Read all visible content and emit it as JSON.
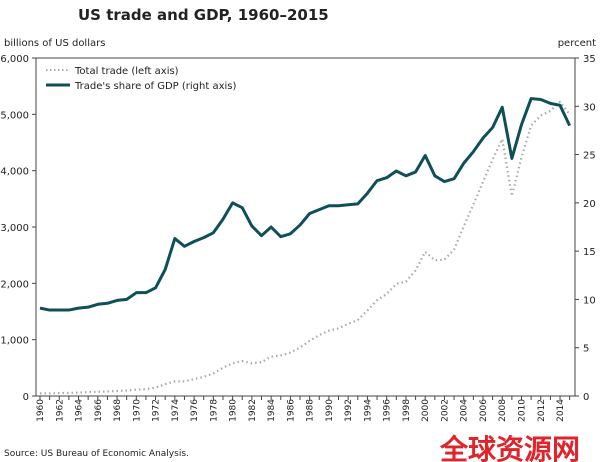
{
  "chart_data": {
    "type": "line",
    "title": "US trade and GDP, 1960–2015",
    "ylabel_left": "billions of US dollars",
    "ylabel_right": "percent",
    "ylim_left": [
      0,
      6000
    ],
    "ylim_right": [
      0,
      35
    ],
    "left_ticks": [
      "0",
      "1,000",
      "2,000",
      "3,000",
      "4,000",
      "5,000",
      "6,000"
    ],
    "right_ticks": [
      "0",
      "5",
      "10",
      "15",
      "20",
      "25",
      "30",
      "35"
    ],
    "x": [
      1960,
      1961,
      1962,
      1963,
      1964,
      1965,
      1966,
      1967,
      1968,
      1969,
      1970,
      1971,
      1972,
      1973,
      1974,
      1975,
      1976,
      1977,
      1978,
      1979,
      1980,
      1981,
      1982,
      1983,
      1984,
      1985,
      1986,
      1987,
      1988,
      1989,
      1990,
      1991,
      1992,
      1993,
      1994,
      1995,
      1996,
      1997,
      1998,
      1999,
      2000,
      2001,
      2002,
      2003,
      2004,
      2005,
      2006,
      2007,
      2008,
      2009,
      2010,
      2011,
      2012,
      2013,
      2014,
      2015
    ],
    "x_tick_labels": [
      "1960",
      "1962",
      "1964",
      "1966",
      "1968",
      "1970",
      "1972",
      "1974",
      "1976",
      "1978",
      "1980",
      "1982",
      "1984",
      "1986",
      "1988",
      "1990",
      "1992",
      "1994",
      "1996",
      "1998",
      "2000",
      "2002",
      "2004",
      "2006",
      "2008",
      "2010",
      "2012",
      "2014"
    ],
    "series": [
      {
        "name": "Total trade (left axis)",
        "axis": "left",
        "style": "dotted",
        "color": "#a9a9a9",
        "values": [
          47,
          48,
          52,
          55,
          60,
          68,
          75,
          80,
          90,
          97,
          115,
          120,
          150,
          210,
          260,
          260,
          300,
          340,
          400,
          500,
          580,
          620,
          580,
          600,
          700,
          720,
          770,
          860,
          980,
          1080,
          1160,
          1200,
          1280,
          1350,
          1520,
          1700,
          1810,
          1990,
          2030,
          2230,
          2560,
          2410,
          2420,
          2600,
          3010,
          3400,
          3800,
          4200,
          4560,
          3550,
          4240,
          4800,
          4980,
          5060,
          5220,
          5000
        ]
      },
      {
        "name": "Trade's share of GDP (right axis)",
        "axis": "right",
        "style": "solid",
        "color": "#0e4f58",
        "values": [
          9.1,
          8.9,
          8.9,
          8.9,
          9.1,
          9.2,
          9.5,
          9.6,
          9.9,
          10.0,
          10.7,
          10.7,
          11.2,
          13.1,
          16.3,
          15.5,
          16.0,
          16.4,
          16.9,
          18.3,
          20.0,
          19.5,
          17.6,
          16.6,
          17.5,
          16.5,
          16.8,
          17.7,
          18.9,
          19.3,
          19.7,
          19.7,
          19.8,
          19.9,
          21.0,
          22.3,
          22.6,
          23.3,
          22.8,
          23.2,
          24.9,
          22.8,
          22.2,
          22.5,
          24.1,
          25.3,
          26.7,
          27.8,
          29.9,
          24.6,
          28.1,
          30.8,
          30.7,
          30.3,
          30.1,
          28.0
        ]
      }
    ],
    "legend": "top-left",
    "grid": false,
    "source": "Source: US Bureau of Economic Analysis.",
    "watermark": "全球资源网"
  }
}
